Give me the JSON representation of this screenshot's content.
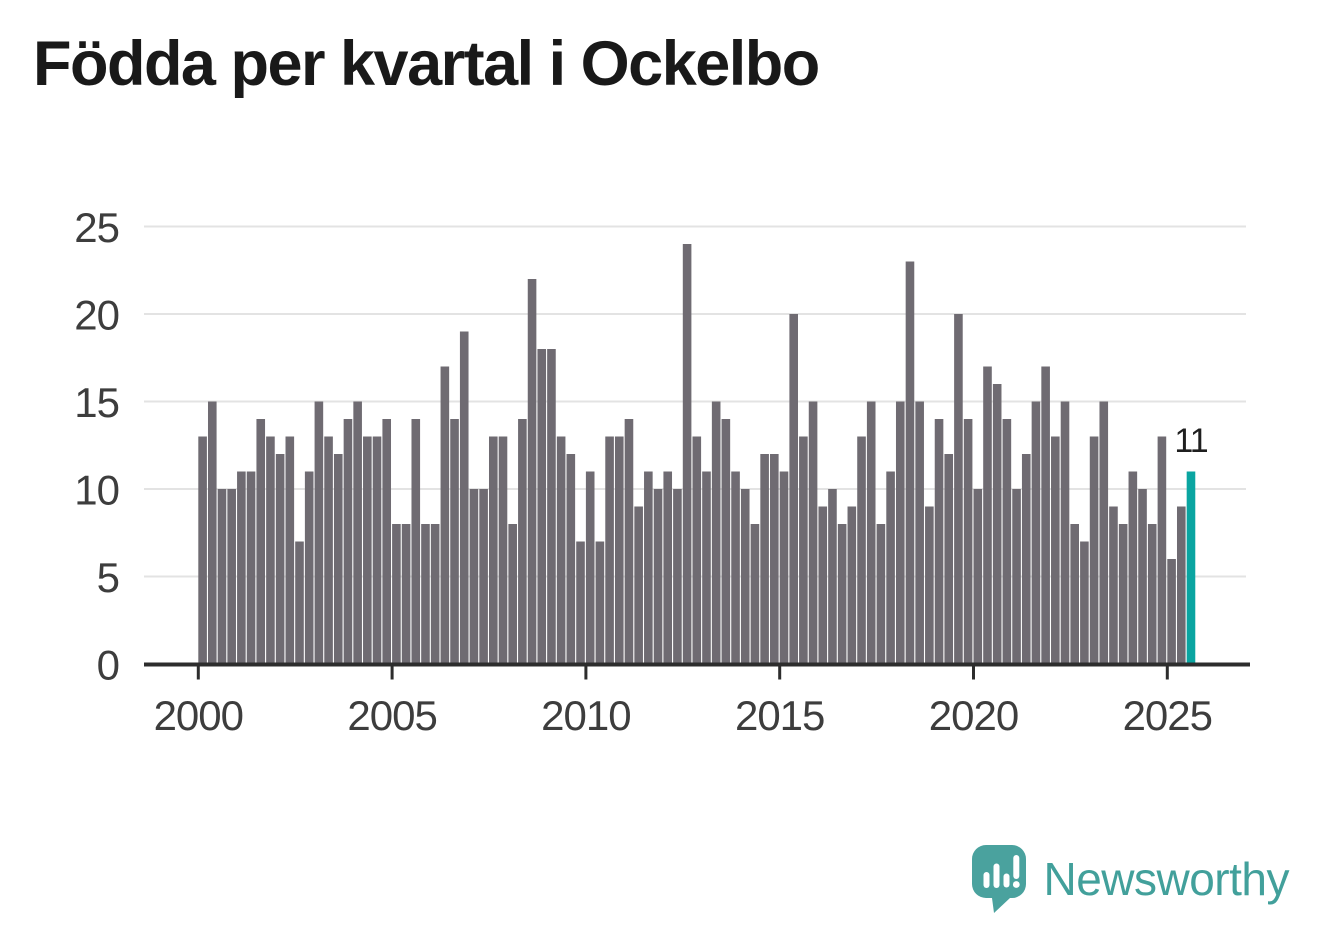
{
  "chart_data": {
    "type": "bar",
    "title": "Födda per kvartal i Ockelbo",
    "xlabel": "",
    "ylabel": "",
    "x_start": "2000-Q1",
    "x_end": "2025-Q3",
    "frequency": "quarterly",
    "values": [
      13,
      15,
      10,
      10,
      11,
      11,
      14,
      13,
      12,
      13,
      7,
      11,
      15,
      13,
      12,
      14,
      15,
      13,
      13,
      14,
      8,
      8,
      14,
      8,
      8,
      17,
      14,
      19,
      10,
      10,
      13,
      13,
      8,
      14,
      22,
      18,
      18,
      13,
      12,
      7,
      11,
      7,
      13,
      13,
      14,
      9,
      11,
      10,
      11,
      10,
      24,
      13,
      11,
      15,
      14,
      11,
      10,
      8,
      12,
      12,
      11,
      20,
      13,
      15,
      9,
      10,
      8,
      9,
      13,
      15,
      8,
      11,
      15,
      23,
      15,
      9,
      14,
      12,
      20,
      14,
      10,
      17,
      16,
      14,
      10,
      12,
      15,
      17,
      13,
      15,
      8,
      7,
      13,
      15,
      9,
      8,
      11,
      10,
      8,
      13,
      6,
      9,
      11
    ],
    "x_tick_labels": [
      "2000",
      "2005",
      "2010",
      "2015",
      "2020",
      "2025"
    ],
    "y_ticks": [
      0,
      5,
      10,
      15,
      20,
      25
    ],
    "ylim": [
      0,
      25
    ],
    "grid": true,
    "legend": "none",
    "bar_color": "#6f6b72",
    "highlight_last_bar": true,
    "highlight_color": "#0aa5a1",
    "last_value_label": "11",
    "axis_label_color": "#3d3d3d",
    "axis_line_color": "#2d2d2d",
    "gridline_color": "#e3e3e3",
    "annotation_color": "#1f1f1f"
  },
  "branding": {
    "logo_text": "Newsworthy",
    "logo_color": "#42a09b",
    "logo_icon": "speech-bubble-bar-chart-icon"
  }
}
